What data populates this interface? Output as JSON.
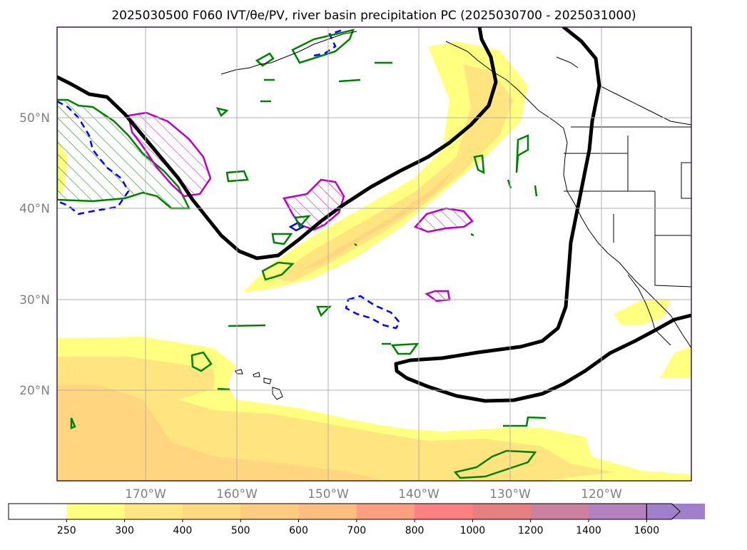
{
  "title": "2025030500 F060 IVT/θe/PV, river basin precipitation PC (2025030700 - 2025031000)",
  "map": {
    "lat_labels": [
      "50°N",
      "40°N",
      "30°N",
      "20°N"
    ],
    "lon_labels": [
      "170°W",
      "160°W",
      "150°W",
      "140°W",
      "130°W",
      "120°W"
    ],
    "label_color": "#808080",
    "frame_color": "#3a1f3a"
  },
  "colorbar": {
    "levels": [
      "250",
      "300",
      "400",
      "500",
      "600",
      "700",
      "800",
      "1000",
      "1200",
      "1400",
      "1600"
    ],
    "colors": [
      "#ffffff",
      "#ffff80",
      "#ffe680",
      "#ffd980",
      "#ffcc80",
      "#ffbf80",
      "#ff9f80",
      "#ff8080",
      "#e68080",
      "#cc80a0",
      "#b380c0",
      "#a080cc"
    ]
  },
  "colors": {
    "ivt_light": "#ffff80",
    "ivt_mid": "#ffe480",
    "ivt_strong": "#ffd580",
    "pv_green": "#008000",
    "theta_magenta": "#c000c0",
    "blue_dashed": "#0000ff",
    "black_contour": "#000000"
  }
}
